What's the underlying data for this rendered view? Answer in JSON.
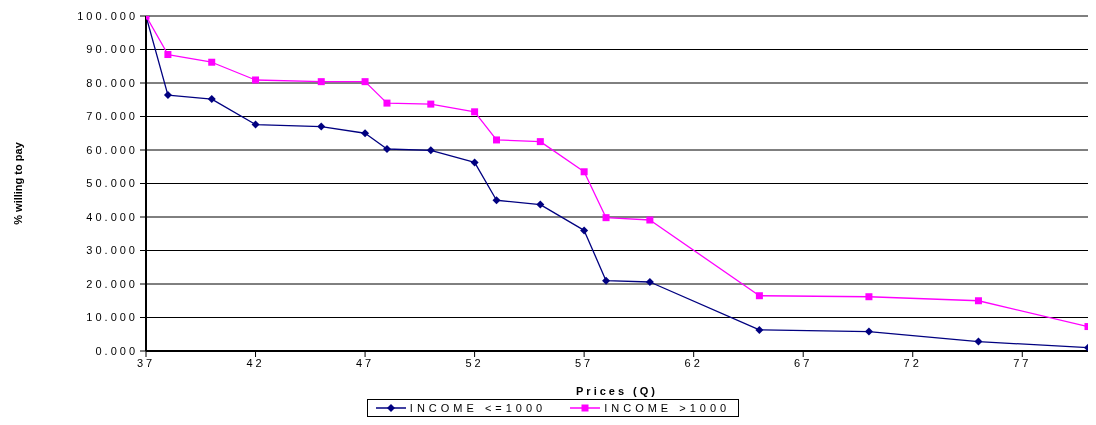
{
  "chart_data": {
    "type": "line",
    "xlabel": "Prices (Q)",
    "ylabel": "% willing to pay",
    "x": [
      37,
      38,
      40,
      42,
      45,
      47,
      48,
      50,
      52,
      53,
      55,
      57,
      58,
      60,
      65,
      70,
      75,
      80
    ],
    "series": [
      {
        "name": "INCOME <=1000",
        "color": "#000080",
        "marker": "diamond",
        "values": [
          100,
          76.4,
          75.2,
          67.6,
          67,
          65,
          60.3,
          59.9,
          56.3,
          45,
          43.7,
          36,
          21,
          20.6,
          6.3,
          5.8,
          2.8,
          1
        ]
      },
      {
        "name": "INCOME >1000",
        "color": "#ff00ff",
        "marker": "square",
        "values": [
          100,
          88.5,
          86.2,
          80.9,
          80.4,
          80.4,
          74,
          73.7,
          71.4,
          63,
          62.5,
          53.5,
          39.8,
          39.1,
          16.5,
          16.2,
          15,
          7.3
        ]
      }
    ],
    "xlim": [
      37,
      80
    ],
    "xticks": [
      37,
      42,
      47,
      52,
      57,
      62,
      67,
      72,
      77
    ],
    "ylim": [
      0,
      100
    ],
    "yticks": [
      {
        "value": 0,
        "label": "0.000"
      },
      {
        "value": 10,
        "label": "10.000"
      },
      {
        "value": 20,
        "label": "20.000"
      },
      {
        "value": 30,
        "label": "30.000"
      },
      {
        "value": 40,
        "label": "40.000"
      },
      {
        "value": 50,
        "label": "50.000"
      },
      {
        "value": 60,
        "label": "60.000"
      },
      {
        "value": 70,
        "label": "70.000"
      },
      {
        "value": 80,
        "label": "80.000"
      },
      {
        "value": 90,
        "label": "90.000"
      },
      {
        "value": 100,
        "label": "100.000"
      }
    ],
    "grid": "y",
    "legend": "bottom",
    "line_style": "solid"
  }
}
